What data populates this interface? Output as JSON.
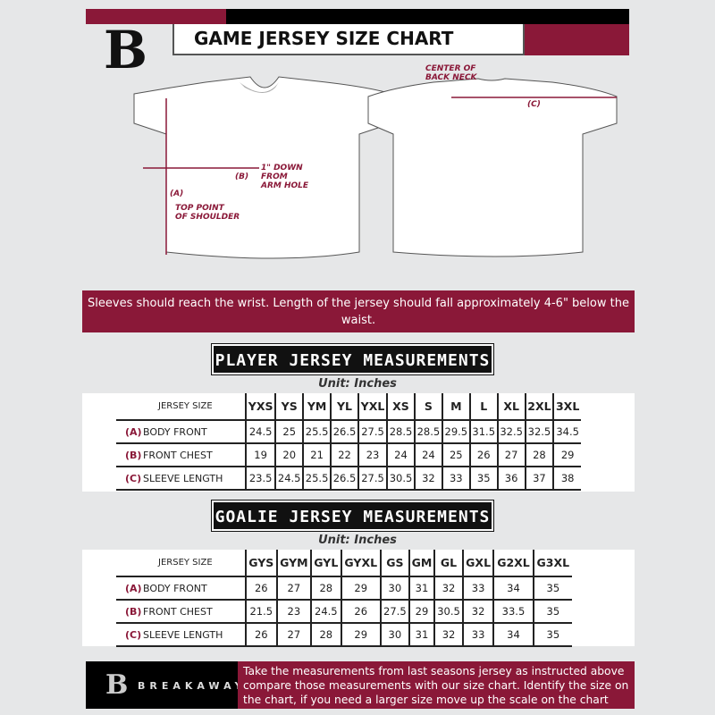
{
  "header": {
    "title": "GAME JERSEY SIZE CHART",
    "logo_letter": "B"
  },
  "diagram": {
    "center_back_neck": "CENTER OF\nBACK NECK",
    "label_a": "(A)",
    "label_b": "(B)",
    "label_c": "(C)",
    "down_from_armhole": "1\" DOWN\nFROM\nARM HOLE",
    "top_point_shoulder": "TOP POINT\nOF SHOULDER"
  },
  "banner": {
    "text": "Sleeves should reach the wrist. Length of the jersey should fall approximately 4-6\" below the waist."
  },
  "player": {
    "title": "PLAYER JERSEY MEASUREMENTS",
    "unit": "Unit: Inches",
    "size_label": "JERSEY SIZE",
    "sizes": [
      "YXS",
      "YS",
      "YM",
      "YL",
      "YXL",
      "XS",
      "S",
      "M",
      "L",
      "XL",
      "2XL",
      "3XL"
    ],
    "rows": [
      {
        "letter": "(A)",
        "name": "BODY FRONT",
        "values": [
          "24.5",
          "25",
          "25.5",
          "26.5",
          "27.5",
          "28.5",
          "28.5",
          "29.5",
          "31.5",
          "32.5",
          "32.5",
          "34.5"
        ]
      },
      {
        "letter": "(B)",
        "name": "FRONT CHEST",
        "values": [
          "19",
          "20",
          "21",
          "22",
          "23",
          "24",
          "24",
          "25",
          "26",
          "27",
          "28",
          "29"
        ]
      },
      {
        "letter": "(C)",
        "name": "SLEEVE LENGTH",
        "values": [
          "23.5",
          "24.5",
          "25.5",
          "26.5",
          "27.5",
          "30.5",
          "32",
          "33",
          "35",
          "36",
          "37",
          "38"
        ]
      }
    ]
  },
  "goalie": {
    "title": "GOALIE JERSEY MEASUREMENTS",
    "unit": "Unit: Inches",
    "size_label": "JERSEY SIZE",
    "sizes": [
      "GYS",
      "GYM",
      "GYL",
      "GYXL",
      "GS",
      "GM",
      "GL",
      "GXL",
      "G2XL",
      "G3XL"
    ],
    "rows": [
      {
        "letter": "(A)",
        "name": "BODY FRONT",
        "values": [
          "26",
          "27",
          "28",
          "29",
          "30",
          "31",
          "32",
          "33",
          "34",
          "35"
        ]
      },
      {
        "letter": "(B)",
        "name": "FRONT CHEST",
        "values": [
          "21.5",
          "23",
          "24.5",
          "26",
          "27.5",
          "29",
          "30.5",
          "32",
          "33.5",
          "35"
        ]
      },
      {
        "letter": "(C)",
        "name": "SLEEVE LENGTH",
        "values": [
          "26",
          "27",
          "28",
          "29",
          "30",
          "31",
          "32",
          "33",
          "34",
          "35"
        ]
      }
    ]
  },
  "footer": {
    "brand": "BREAKAWAY",
    "text": "Take the measurements from last seasons jersey as instructed above compare those measurements  with our size chart. Identify the size on the chart, if you need a larger size move up the scale on the chart"
  },
  "colors": {
    "accent": "#8a1838",
    "dark": "#111111",
    "background": "#e6e7e8"
  }
}
